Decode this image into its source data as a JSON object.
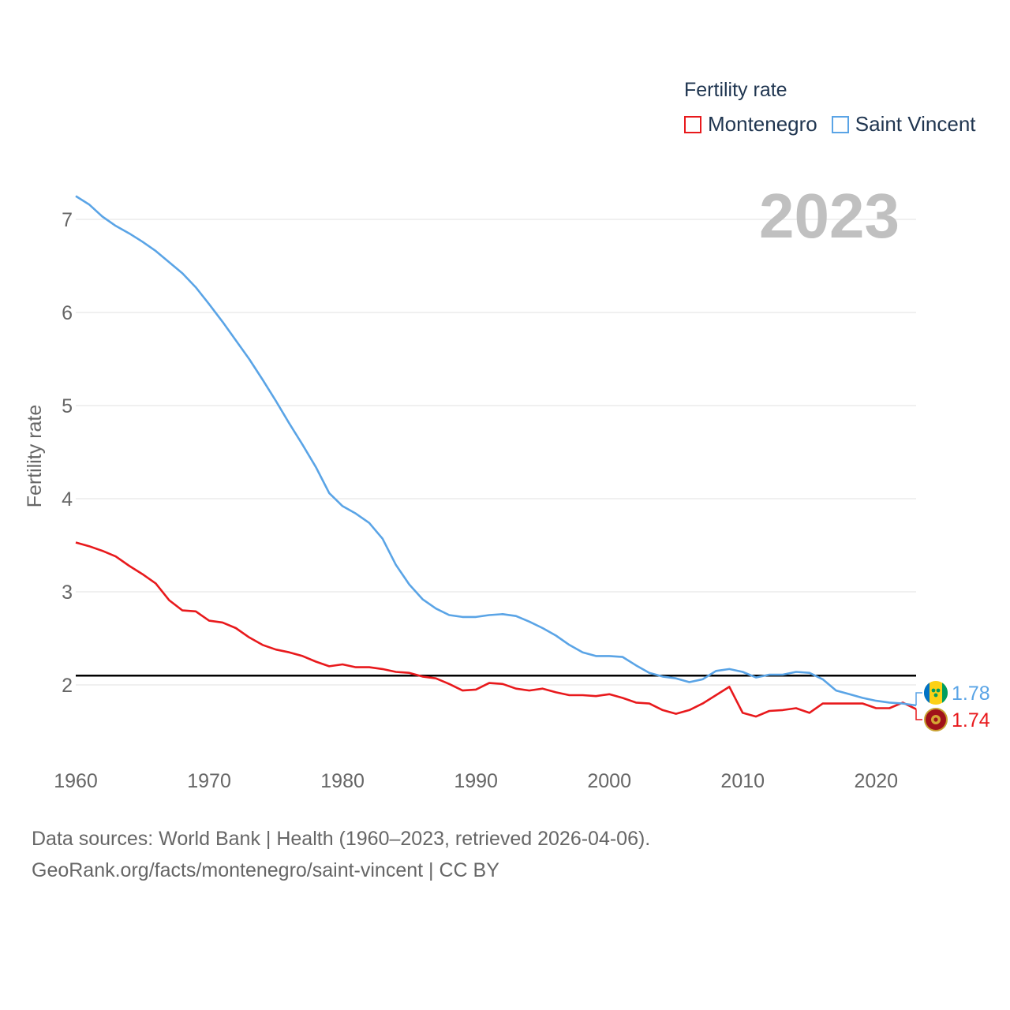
{
  "legend": {
    "title": "Fertility rate",
    "items": [
      {
        "label": "Montenegro",
        "color": "#e8191c"
      },
      {
        "label": "Saint Vincent",
        "color": "#5aa4e6"
      }
    ]
  },
  "year_label": "2023",
  "source": {
    "line1": "Data sources: World Bank | Health (1960–2023, retrieved 2026-04-06).",
    "line2": "GeoRank.org/facts/montenegro/saint-vincent | CC BY"
  },
  "chart_data": {
    "type": "line",
    "title": "Fertility rate",
    "xlabel": "",
    "ylabel": "Fertility rate",
    "xlim": [
      1960,
      2023
    ],
    "ylim": [
      1.4,
      7.3
    ],
    "x_ticks": [
      1960,
      1970,
      1980,
      1990,
      2000,
      2010,
      2020
    ],
    "y_ticks": [
      2,
      3,
      4,
      5,
      6,
      7
    ],
    "grid": true,
    "reference_line": {
      "y": 2.1,
      "color": "#000000"
    },
    "x": [
      1960,
      1961,
      1962,
      1963,
      1964,
      1965,
      1966,
      1967,
      1968,
      1969,
      1970,
      1971,
      1972,
      1973,
      1974,
      1975,
      1976,
      1977,
      1978,
      1979,
      1980,
      1981,
      1982,
      1983,
      1984,
      1985,
      1986,
      1987,
      1988,
      1989,
      1990,
      1991,
      1992,
      1993,
      1994,
      1995,
      1996,
      1997,
      1998,
      1999,
      2000,
      2001,
      2002,
      2003,
      2004,
      2005,
      2006,
      2007,
      2008,
      2009,
      2010,
      2011,
      2012,
      2013,
      2014,
      2015,
      2016,
      2017,
      2018,
      2019,
      2020,
      2021,
      2022,
      2023
    ],
    "series": [
      {
        "name": "Montenegro",
        "color": "#e8191c",
        "end_label": "1.74",
        "values": [
          3.53,
          3.49,
          3.44,
          3.38,
          3.28,
          3.19,
          3.09,
          2.91,
          2.8,
          2.79,
          2.69,
          2.67,
          2.61,
          2.51,
          2.43,
          2.38,
          2.35,
          2.31,
          2.25,
          2.2,
          2.22,
          2.19,
          2.19,
          2.17,
          2.14,
          2.13,
          2.09,
          2.07,
          2.01,
          1.94,
          1.95,
          2.02,
          2.01,
          1.96,
          1.94,
          1.96,
          1.92,
          1.89,
          1.89,
          1.88,
          1.9,
          1.86,
          1.81,
          1.8,
          1.73,
          1.69,
          1.73,
          1.8,
          1.89,
          1.98,
          1.7,
          1.66,
          1.72,
          1.73,
          1.75,
          1.7,
          1.8,
          1.8,
          1.8,
          1.8,
          1.75,
          1.75,
          1.81,
          1.74
        ]
      },
      {
        "name": "Saint Vincent",
        "color": "#5aa4e6",
        "end_label": "1.78",
        "values": [
          7.25,
          7.16,
          7.03,
          6.93,
          6.85,
          6.76,
          6.66,
          6.54,
          6.42,
          6.27,
          6.09,
          5.9,
          5.7,
          5.5,
          5.28,
          5.05,
          4.81,
          4.58,
          4.34,
          4.06,
          3.92,
          3.84,
          3.74,
          3.57,
          3.29,
          3.08,
          2.92,
          2.82,
          2.75,
          2.73,
          2.73,
          2.75,
          2.76,
          2.74,
          2.68,
          2.61,
          2.53,
          2.43,
          2.35,
          2.31,
          2.31,
          2.3,
          2.21,
          2.13,
          2.09,
          2.07,
          2.03,
          2.06,
          2.15,
          2.17,
          2.14,
          2.08,
          2.11,
          2.11,
          2.14,
          2.13,
          2.06,
          1.94,
          1.9,
          1.86,
          1.83,
          1.81,
          1.8,
          1.78
        ]
      }
    ]
  }
}
